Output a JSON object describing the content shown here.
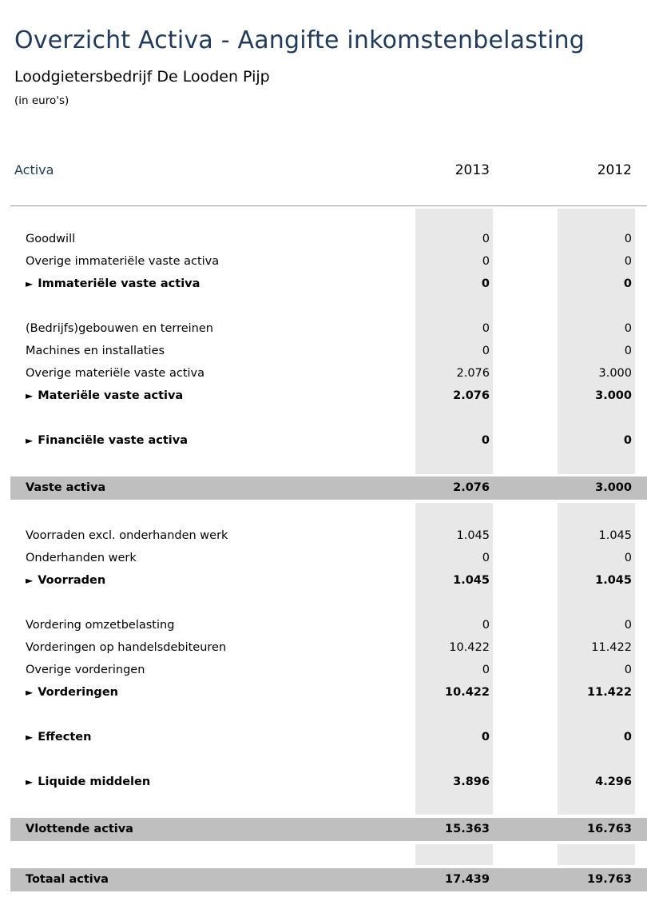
{
  "page": {
    "title": "Overzicht Activa - Aangifte inkomstenbelasting",
    "company": "Loodgietersbedrijf De Looden Pijp",
    "unit_note": "(in euro's)"
  },
  "header": {
    "label": "Activa",
    "year1": "2013",
    "year2": "2012"
  },
  "arrow_glyph": "►",
  "rows": {
    "goodwill": {
      "label": "Goodwill",
      "y2013": "0",
      "y2012": "0"
    },
    "overige_immaterieel": {
      "label": "Overige immateriële vaste activa",
      "y2013": "0",
      "y2012": "0"
    },
    "immaterieel": {
      "label": "Immateriële vaste activa",
      "y2013": "0",
      "y2012": "0"
    },
    "gebouwen": {
      "label": "(Bedrijfs)gebouwen en terreinen",
      "y2013": "0",
      "y2012": "0"
    },
    "machines": {
      "label": "Machines en installaties",
      "y2013": "0",
      "y2012": "0"
    },
    "overige_materieel": {
      "label": "Overige materiële vaste activa",
      "y2013": "2.076",
      "y2012": "3.000"
    },
    "materieel": {
      "label": "Materiële vaste activa",
      "y2013": "2.076",
      "y2012": "3.000"
    },
    "financieel": {
      "label": "Financiële vaste activa",
      "y2013": "0",
      "y2012": "0"
    },
    "vaste_activa": {
      "label": "Vaste activa",
      "y2013": "2.076",
      "y2012": "3.000"
    },
    "voorraden_excl": {
      "label": "Voorraden excl. onderhanden werk",
      "y2013": "1.045",
      "y2012": "1.045"
    },
    "onderhanden": {
      "label": "Onderhanden werk",
      "y2013": "0",
      "y2012": "0"
    },
    "voorraden": {
      "label": "Voorraden",
      "y2013": "1.045",
      "y2012": "1.045"
    },
    "vordering_omzet": {
      "label": "Vordering omzetbelasting",
      "y2013": "0",
      "y2012": "0"
    },
    "vorderingen_deb": {
      "label": "Vorderingen op handelsdebiteuren",
      "y2013": "10.422",
      "y2012": "11.422"
    },
    "overige_vord": {
      "label": "Overige vorderingen",
      "y2013": "0",
      "y2012": "0"
    },
    "vorderingen": {
      "label": "Vorderingen",
      "y2013": "10.422",
      "y2012": "11.422"
    },
    "effecten": {
      "label": "Effecten",
      "y2013": "0",
      "y2012": "0"
    },
    "liquide": {
      "label": "Liquide middelen",
      "y2013": "3.896",
      "y2012": "4.296"
    },
    "vlottende": {
      "label": "Vlottende activa",
      "y2013": "15.363",
      "y2012": "16.763"
    },
    "totaal": {
      "label": "Totaal activa",
      "y2013": "17.439",
      "y2012": "19.763"
    }
  }
}
